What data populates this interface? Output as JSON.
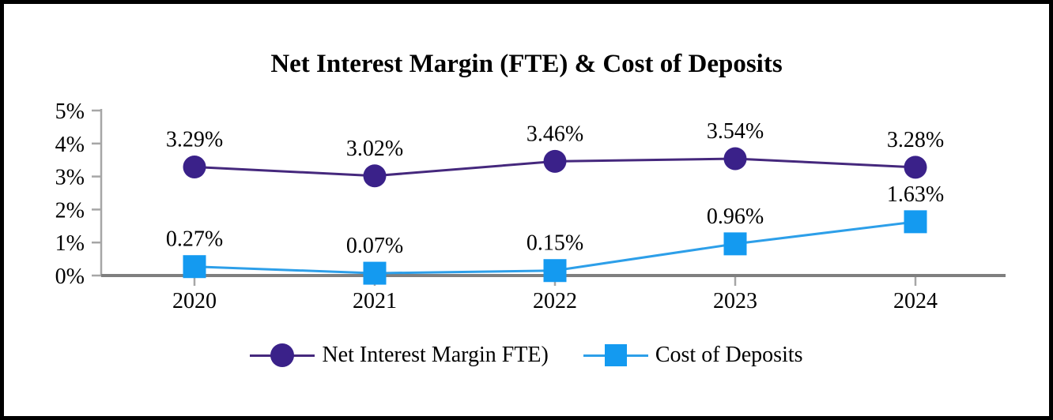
{
  "chart_data": {
    "type": "line",
    "title": "Net Interest Margin (FTE) & Cost of Deposits",
    "categories": [
      "2020",
      "2021",
      "2022",
      "2023",
      "2024"
    ],
    "series": [
      {
        "name": "Net Interest Margin FTE)",
        "marker": "circle",
        "color": "#3a2189",
        "line_color": "#45287d",
        "values": [
          3.29,
          3.02,
          3.46,
          3.54,
          3.28
        ],
        "labels": [
          "3.29%",
          "3.02%",
          "3.46%",
          "3.54%",
          "3.28%"
        ]
      },
      {
        "name": "Cost of Deposits",
        "marker": "square",
        "color": "#149af0",
        "line_color": "#2d9fe9",
        "values": [
          0.27,
          0.07,
          0.15,
          0.96,
          1.63
        ],
        "labels": [
          "0.27%",
          "0.07%",
          "0.15%",
          "0.96%",
          "1.63%"
        ]
      }
    ],
    "y_ticks": [
      {
        "value": 0,
        "label": "0%"
      },
      {
        "value": 1,
        "label": "1%"
      },
      {
        "value": 2,
        "label": "2%"
      },
      {
        "value": 3,
        "label": "3%"
      },
      {
        "value": 4,
        "label": "4%"
      },
      {
        "value": 5,
        "label": "5%"
      }
    ],
    "ylim": [
      0,
      5
    ],
    "grid": false,
    "legend_position": "bottom",
    "x_axis_color": "#7f7f7f",
    "y_axis_color": "#a6a6a6",
    "tick_color": "#a6a6a6",
    "text_color": "#000000"
  }
}
